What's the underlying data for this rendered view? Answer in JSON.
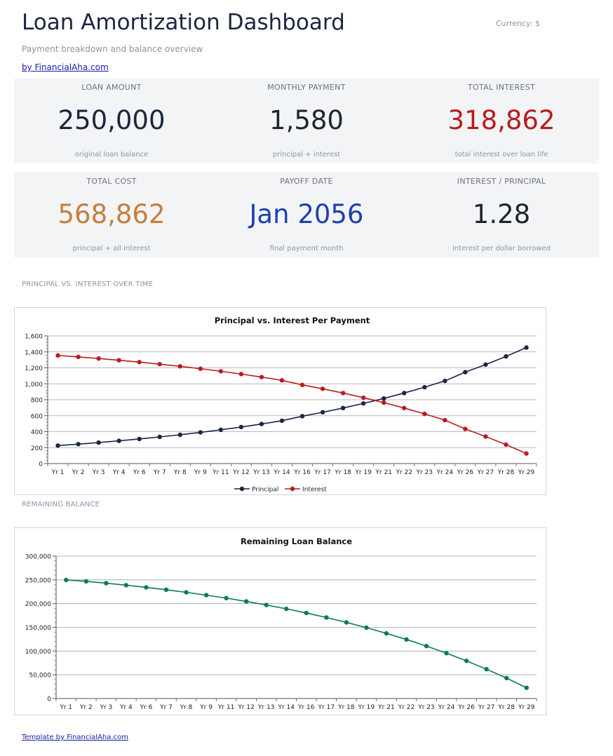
{
  "header": {
    "title": "Loan Amortization Dashboard",
    "currency": "Currency: $",
    "subtitle": "Payment breakdown and balance overview",
    "byline": "by FinancialAha.com"
  },
  "kpis": [
    {
      "label": "LOAN AMOUNT",
      "value": "250,000",
      "note": "original loan balance",
      "color": "#1b2640"
    },
    {
      "label": "MONTHLY PAYMENT",
      "value": "1,580",
      "note": "principal + interest",
      "color": "#1f2430"
    },
    {
      "label": "TOTAL INTEREST",
      "value": "318,862",
      "note": "total interest over loan life",
      "color": "#b91c1c"
    },
    {
      "label": "TOTAL COST",
      "value": "568,862",
      "note": "principal + all interest",
      "color": "#c47f3c"
    },
    {
      "label": "PAYOFF DATE",
      "value": "Jan 2056",
      "note": "final payment month",
      "color": "#1e40af"
    },
    {
      "label": "INTEREST / PRINCIPAL",
      "value": "1.28",
      "note": "interest per dollar borrowed",
      "color": "#1f2430"
    }
  ],
  "sections": {
    "principal_vs_interest": "PRINCIPAL VS. INTEREST OVER TIME",
    "remaining_balance": "REMAINING BALANCE"
  },
  "footer": {
    "link": "Template by FinancialAha.com"
  },
  "chart_data": [
    {
      "type": "line",
      "title": "Principal vs. Interest Per Payment",
      "xlabel": "",
      "ylabel": "",
      "categories": [
        "Yr 1",
        "Yr 2",
        "Yr 3",
        "Yr 4",
        "Yr 6",
        "Yr 7",
        "Yr 8",
        "Yr 9",
        "Yr 11",
        "Yr 12",
        "Yr 13",
        "Yr 14",
        "Yr 16",
        "Yr 17",
        "Yr 18",
        "Yr 19",
        "Yr 21",
        "Yr 22",
        "Yr 23",
        "Yr 24",
        "Yr 26",
        "Yr 27",
        "Yr 28",
        "Yr 29"
      ],
      "ylim": [
        0,
        1600
      ],
      "yticks": [
        0,
        200,
        400,
        600,
        800,
        1000,
        1200,
        1400,
        1600
      ],
      "ytick_labels": [
        "0",
        "200",
        "400",
        "600",
        "800",
        "1,000",
        "1,200",
        "1,400",
        "1,600"
      ],
      "grid": true,
      "legend": "bottom",
      "series": [
        {
          "name": "Principal",
          "color": "#1b2640",
          "values": [
            225,
            243,
            263,
            285,
            308,
            334,
            361,
            391,
            423,
            458,
            496,
            537,
            594,
            643,
            696,
            754,
            816,
            884,
            957,
            1036,
            1146,
            1241,
            1343,
            1454
          ]
        },
        {
          "name": "Interest",
          "color": "#b91c1c",
          "values": [
            1355,
            1337,
            1317,
            1295,
            1272,
            1246,
            1219,
            1189,
            1157,
            1122,
            1084,
            1043,
            986,
            937,
            884,
            826,
            764,
            696,
            623,
            544,
            434,
            339,
            237,
            126
          ]
        }
      ]
    },
    {
      "type": "line",
      "title": "Remaining Loan Balance",
      "xlabel": "",
      "ylabel": "",
      "categories": [
        "Yr 1",
        "Yr 2",
        "Yr 3",
        "Yr 4",
        "Yr 6",
        "Yr 7",
        "Yr 8",
        "Yr 9",
        "Yr 11",
        "Yr 12",
        "Yr 13",
        "Yr 14",
        "Yr 16",
        "Yr 17",
        "Yr 18",
        "Yr 19",
        "Yr 21",
        "Yr 22",
        "Yr 23",
        "Yr 24",
        "Yr 26",
        "Yr 27",
        "Yr 28",
        "Yr 29"
      ],
      "ylim": [
        0,
        300000
      ],
      "yticks": [
        0,
        50000,
        100000,
        150000,
        200000,
        250000,
        300000
      ],
      "ytick_labels": [
        "0",
        "50,000",
        "100,000",
        "150,000",
        "200,000",
        "250,000",
        "300,000"
      ],
      "grid": true,
      "series": [
        {
          "name": "",
          "color": "#0e7a55",
          "values": [
            249775,
            246900,
            243000,
            238800,
            234200,
            229200,
            223700,
            217800,
            211500,
            204600,
            197100,
            189000,
            180200,
            170700,
            160400,
            149300,
            137300,
            124400,
            110500,
            95500,
            79300,
            61800,
            43000,
            22500
          ]
        }
      ]
    }
  ]
}
